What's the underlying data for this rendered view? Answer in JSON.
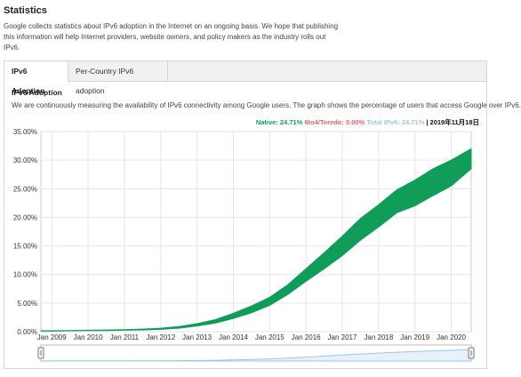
{
  "page": {
    "title": "Statistics",
    "intro": "Google collects statistics about IPv6 adoption in the Internet on an ongoing basis. We hope that publishing this information will help Internet providers, website owners, and policy makers as the industry rolls out IPv6."
  },
  "tabs": [
    {
      "label": "IPv6 Adoption",
      "active": true
    },
    {
      "label": "Per-Country IPv6 adoption",
      "active": false
    }
  ],
  "section": {
    "title": "IPv6 Adoption",
    "description": "We are continuously measuring the availability of IPv6 connectivity among Google users. The graph shows the percentage of users that access Google over IPv6."
  },
  "legend": {
    "native_label": "Native: 24.71%",
    "teredo_label": "6to4/Teredo: 0.00%",
    "total_label": "Total IPv6: 24.71%",
    "separator": "|",
    "date": "2019年11月18日"
  },
  "colors": {
    "native": "#0f9d58",
    "teredo": "#e06666",
    "total": "#9fc5e8",
    "grid": "#e6e6e6"
  },
  "chart_data": {
    "type": "area",
    "y_ticks": [
      "35.00%",
      "30.00%",
      "25.00%",
      "20.00%",
      "15.00%",
      "10.00%",
      "5.00%",
      "0.00%"
    ],
    "x_ticks": [
      "Jan 2009",
      "Jan 2010",
      "Jan 2011",
      "Jan 2012",
      "Jan 2013",
      "Jan 2014",
      "Jan 2015",
      "Jan 2016",
      "Jan 2017",
      "Jan 2018",
      "Jan 2019",
      "Jan 2020"
    ],
    "ylim": [
      0,
      35
    ],
    "xlim": [
      2008.7,
      2020.55
    ],
    "grid": true,
    "series": [
      {
        "name": "Native",
        "x": [
          2008.7,
          2009.0,
          2009.5,
          2010.0,
          2010.5,
          2011.0,
          2011.5,
          2012.0,
          2012.5,
          2013.0,
          2013.5,
          2014.0,
          2014.5,
          2015.0,
          2015.5,
          2016.0,
          2016.5,
          2017.0,
          2017.5,
          2018.0,
          2018.5,
          2019.0,
          2019.5,
          2020.0,
          2020.55
        ],
        "low": [
          0.1,
          0.1,
          0.15,
          0.2,
          0.2,
          0.25,
          0.3,
          0.4,
          0.6,
          1.0,
          1.5,
          2.3,
          3.3,
          4.6,
          6.5,
          8.8,
          11.0,
          13.3,
          16.0,
          18.3,
          20.8,
          22.0,
          23.8,
          25.5,
          28.5
        ],
        "high": [
          0.15,
          0.15,
          0.2,
          0.25,
          0.3,
          0.35,
          0.45,
          0.6,
          0.9,
          1.4,
          2.1,
          3.2,
          4.5,
          6.0,
          8.2,
          11.0,
          13.8,
          16.7,
          19.8,
          22.2,
          24.8,
          26.5,
          28.5,
          30.0,
          32.0
        ]
      }
    ]
  }
}
